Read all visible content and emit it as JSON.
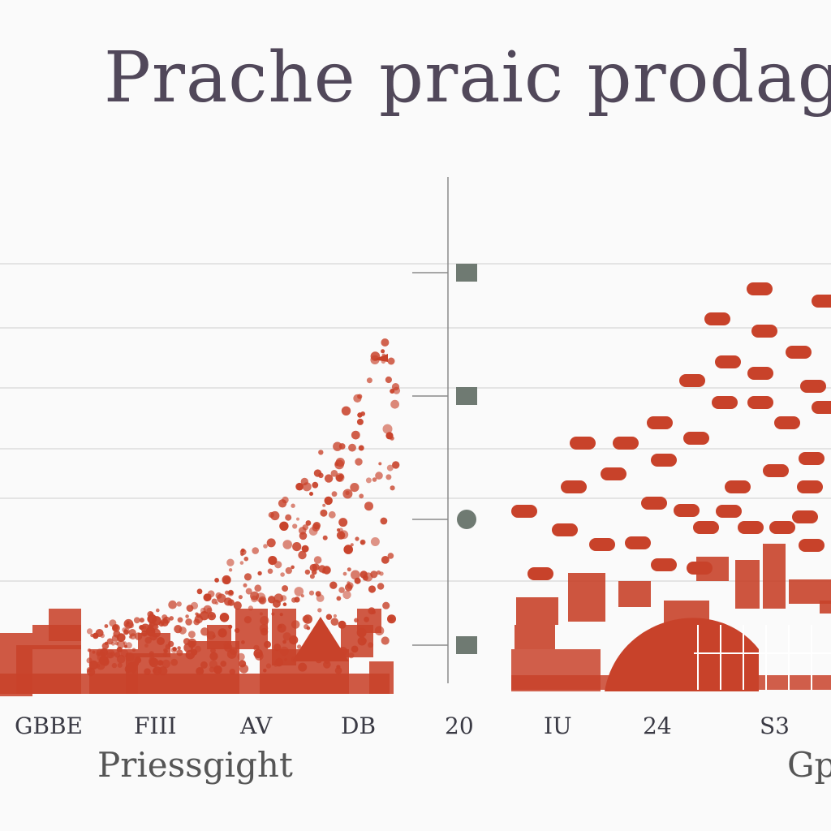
{
  "chart_data": {
    "type": "scatter",
    "title": "Prache praic prodag",
    "left_panel": {
      "categories": [
        "GBBE",
        "FIII",
        "AV",
        "DB"
      ],
      "xlabel": "Priessgight"
    },
    "right_panel": {
      "categories": [
        "20",
        "IU",
        "24",
        "S3"
      ],
      "xlabel": "Gp"
    },
    "grid": true,
    "legend": "none",
    "colors": {
      "marks": "#c8422a",
      "grid": "#dcdcdc",
      "title": "#51485a",
      "axis": "#8a8a8a",
      "marker": "#6f7a72"
    }
  }
}
